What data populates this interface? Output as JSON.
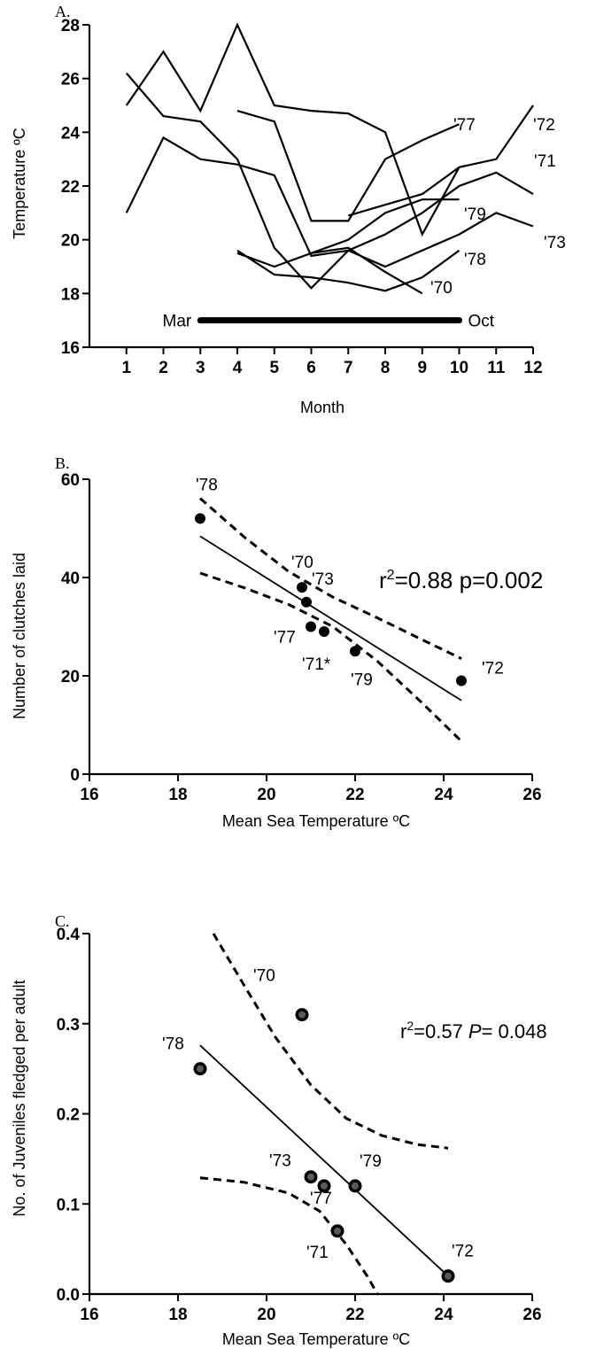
{
  "chart_data": [
    {
      "panel_label": "A.",
      "type": "line",
      "xlabel": "Month",
      "ylabel": "Temperature ºC",
      "xlim": [
        0,
        12
      ],
      "ylim": [
        16,
        28
      ],
      "xticks": [
        1,
        2,
        3,
        4,
        5,
        6,
        7,
        8,
        9,
        10,
        11,
        12
      ],
      "yticks": [
        16,
        18,
        20,
        22,
        24,
        26,
        28
      ],
      "season_bar": {
        "start_label": "Mar",
        "end_label": "Oct",
        "x_start": 3,
        "x_end": 10,
        "y": 17
      },
      "series": [
        {
          "name": "'77",
          "x": [
            1,
            2,
            3,
            4,
            5,
            6,
            7,
            8,
            9,
            10
          ],
          "y": [
            25.0,
            27.0,
            24.8,
            28.0,
            25.0,
            24.8,
            24.7,
            24.0,
            20.2,
            22.7
          ]
        },
        {
          "name": "'72",
          "x": [
            1,
            2,
            3,
            4,
            5,
            6,
            7,
            8,
            9,
            10,
            11,
            12
          ],
          "y": [
            26.2,
            24.6,
            24.4,
            23.0,
            19.7,
            18.2,
            19.6,
            19.0,
            19.6,
            20.2,
            21.0,
            20.5
          ]
        },
        {
          "name": "'71",
          "x": [
            1,
            2,
            3,
            4,
            5,
            6,
            7,
            8,
            9,
            10,
            11,
            12
          ],
          "y": [
            21.0,
            23.8,
            23.0,
            22.8,
            22.4,
            19.4,
            19.6,
            20.2,
            21.0,
            22.0,
            22.5,
            21.7
          ]
        },
        {
          "name": "'79",
          "x": [
            4,
            5,
            6,
            7,
            8,
            9,
            10
          ],
          "y": [
            24.8,
            24.4,
            20.7,
            20.7,
            23.0,
            23.7,
            24.3
          ]
        },
        {
          "name": "'73",
          "x": [
            7,
            8,
            9,
            10,
            11,
            12
          ],
          "y": [
            20.9,
            21.3,
            21.7,
            22.7,
            23.0,
            25.0
          ]
        },
        {
          "name": "'78",
          "x": [
            4,
            5,
            6,
            7,
            8,
            9,
            10
          ],
          "y": [
            19.5,
            19.0,
            19.5,
            20.0,
            21.0,
            21.5,
            21.5
          ]
        },
        {
          "name": "'70",
          "x": [
            4,
            5,
            6,
            7,
            8,
            9,
            10
          ],
          "y": [
            19.6,
            18.7,
            18.6,
            18.4,
            18.1,
            18.6,
            19.6
          ]
        },
        {
          "name": "",
          "x": [
            6,
            7,
            8,
            9
          ],
          "y": [
            19.5,
            19.7,
            18.8,
            18.0
          ]
        }
      ],
      "labels": [
        "'77",
        "'72",
        "'71",
        "'79",
        "'73",
        "'78",
        "'70"
      ]
    },
    {
      "panel_label": "B.",
      "type": "scatter",
      "xlabel": "Mean Sea Temperature ºC",
      "ylabel": "Number of clutches laid",
      "xlim": [
        16,
        26
      ],
      "ylim": [
        0,
        60
      ],
      "xticks": [
        16,
        18,
        20,
        22,
        24,
        26
      ],
      "yticks": [
        0,
        20,
        40,
        60
      ],
      "points": [
        {
          "label": "'78",
          "x": 18.5,
          "y": 52
        },
        {
          "label": "'70",
          "x": 20.8,
          "y": 38
        },
        {
          "label": "'73",
          "x": 20.9,
          "y": 35
        },
        {
          "label": "'77",
          "x": 21.0,
          "y": 30
        },
        {
          "label": "'71*",
          "x": 21.3,
          "y": 29
        },
        {
          "label": "'79",
          "x": 22.0,
          "y": 25
        },
        {
          "label": "'72",
          "x": 24.4,
          "y": 19
        }
      ],
      "fit": {
        "x": [
          18.5,
          24.4
        ],
        "y": [
          48.4,
          15.0
        ]
      },
      "ci_upper": {
        "x": [
          18.5,
          19.5,
          20.5,
          21.5,
          22.5,
          23.5,
          24.4
        ],
        "y": [
          56.1,
          48.2,
          41.2,
          36.0,
          31.8,
          27.4,
          23.5
        ]
      },
      "ci_lower": {
        "x": [
          18.5,
          19.5,
          20.5,
          21.5,
          22.5,
          23.5,
          24.4
        ],
        "y": [
          40.9,
          37.9,
          34.5,
          30.0,
          23.0,
          14.6,
          6.7
        ]
      },
      "stat": {
        "r2_label": "r",
        "r2_sup": "2",
        "r2_text": "=0.88 p=0.002"
      }
    },
    {
      "panel_label": "C.",
      "type": "scatter",
      "xlabel": "Mean Sea Temperature ºC",
      "ylabel": "No. of Juveniles fledged per adult",
      "xlim": [
        16,
        26
      ],
      "ylim": [
        0.0,
        0.4
      ],
      "xticks": [
        16,
        18,
        20,
        22,
        24,
        26
      ],
      "yticks": [
        0.0,
        0.1,
        0.2,
        0.3,
        0.4
      ],
      "points": [
        {
          "label": "'78",
          "x": 18.5,
          "y": 0.25
        },
        {
          "label": "'70",
          "x": 20.8,
          "y": 0.31
        },
        {
          "label": "'73",
          "x": 21.0,
          "y": 0.13
        },
        {
          "label": "'77",
          "x": 21.3,
          "y": 0.12
        },
        {
          "label": "'71",
          "x": 21.6,
          "y": 0.07
        },
        {
          "label": "'79",
          "x": 22.0,
          "y": 0.12
        },
        {
          "label": "'72",
          "x": 24.1,
          "y": 0.02
        }
      ],
      "fit": {
        "x": [
          18.5,
          24.1
        ],
        "y": [
          0.276,
          0.02
        ]
      },
      "ci_upper": {
        "x": [
          18.8,
          19.5,
          20.2,
          21.0,
          21.8,
          22.6,
          23.4,
          24.1
        ],
        "y": [
          0.4,
          0.342,
          0.285,
          0.232,
          0.195,
          0.176,
          0.166,
          0.162
        ]
      },
      "ci_lower": {
        "x": [
          18.5,
          19.5,
          20.5,
          21.2,
          21.8,
          22.3,
          22.5
        ],
        "y": [
          0.129,
          0.124,
          0.112,
          0.092,
          0.055,
          0.018,
          0.0
        ]
      },
      "stat": {
        "r2_label": "r",
        "r2_sup": "2",
        "r2_text": "=0.57 ",
        "p_label": "P",
        "p_text": "= 0.048"
      }
    }
  ]
}
